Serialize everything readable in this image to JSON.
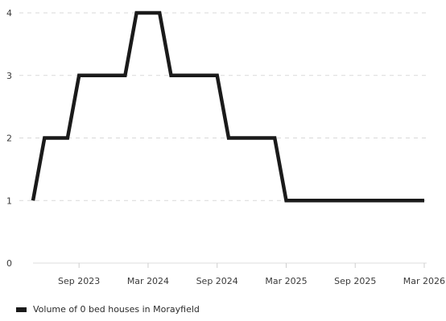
{
  "colors": {
    "series": "#1a1a1a",
    "grid": "#d9d9d9",
    "axis_text": "#3a3a3a"
  },
  "chart_data": {
    "type": "line",
    "title": "",
    "xlabel": "",
    "ylabel": "",
    "ylim": [
      0,
      4
    ],
    "yticks": [
      0,
      1,
      2,
      3,
      4
    ],
    "xlim": [
      "2023-05",
      "2026-03"
    ],
    "xtick_labels": [
      "Sep 2023",
      "Mar 2024",
      "Sep 2024",
      "Mar 2025",
      "Sep 2025",
      "Mar 2026"
    ],
    "xtick_dates": [
      "2023-09",
      "2024-03",
      "2024-09",
      "2025-03",
      "2025-09",
      "2026-03"
    ],
    "grid": "horizontal dashed",
    "legend_position": "bottom-left",
    "series": [
      {
        "name": "Volume of 0 bed houses in Morayfield",
        "points": [
          {
            "x": "2023-05",
            "y": 1
          },
          {
            "x": "2023-06",
            "y": 2
          },
          {
            "x": "2023-08",
            "y": 2
          },
          {
            "x": "2023-09",
            "y": 3
          },
          {
            "x": "2024-01",
            "y": 3
          },
          {
            "x": "2024-02",
            "y": 4
          },
          {
            "x": "2024-04",
            "y": 4
          },
          {
            "x": "2024-05",
            "y": 3
          },
          {
            "x": "2024-09",
            "y": 3
          },
          {
            "x": "2024-10",
            "y": 2
          },
          {
            "x": "2025-02",
            "y": 2
          },
          {
            "x": "2025-03",
            "y": 1
          },
          {
            "x": "2026-03",
            "y": 1
          }
        ]
      }
    ]
  }
}
